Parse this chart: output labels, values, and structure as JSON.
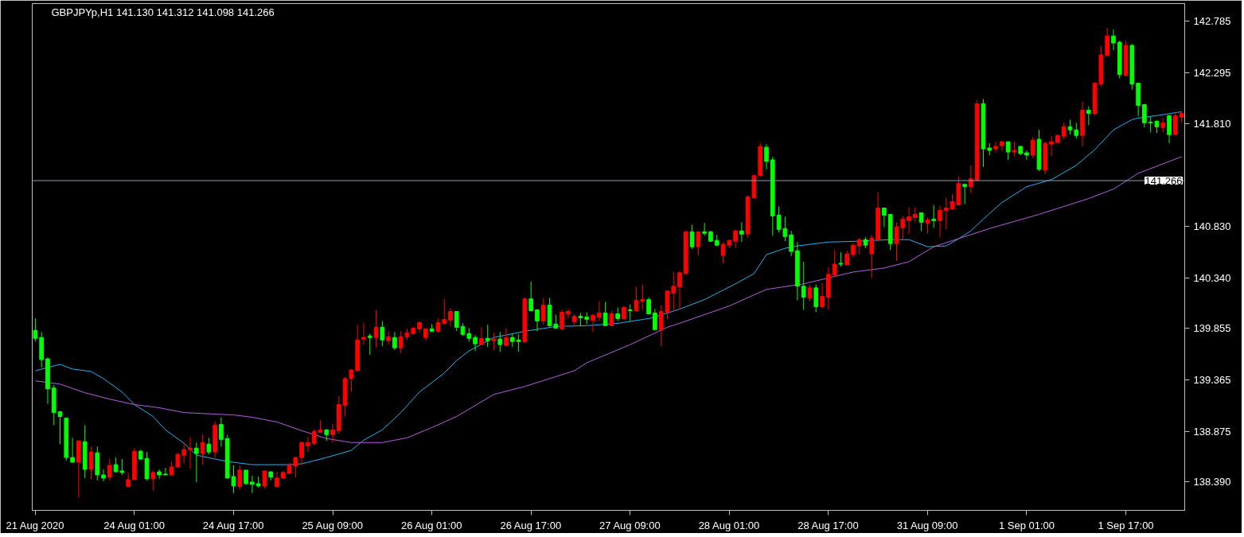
{
  "chart_data": {
    "type": "candlestick",
    "title": "GBPJPYp,H1  141.130 141.312 141.098 141.266",
    "categories": [
      "21 Aug 2020",
      null,
      null,
      null,
      null,
      null,
      null,
      null,
      null,
      null,
      null,
      null,
      null,
      null,
      null,
      null,
      "24 Aug 01:00",
      null,
      null,
      null,
      null,
      null,
      null,
      null,
      null,
      null,
      null,
      null,
      null,
      null,
      null,
      null,
      "24 Aug 17:00",
      null,
      null,
      null,
      null,
      null,
      null,
      null,
      null,
      null,
      null,
      null,
      null,
      null,
      null,
      null,
      "25 Aug 09:00",
      null,
      null,
      null,
      null,
      null,
      null,
      null,
      null,
      null,
      null,
      null,
      null,
      null,
      null,
      null,
      "26 Aug 01:00",
      null,
      null,
      null,
      null,
      null,
      null,
      null,
      null,
      null,
      null,
      null,
      null,
      null,
      null,
      null,
      "26 Aug 17:00",
      null,
      null,
      null,
      null,
      null,
      null,
      null,
      null,
      null,
      null,
      null,
      null,
      null,
      null,
      null,
      "27 Aug 09:00",
      null,
      null,
      null,
      null,
      null,
      null,
      null,
      null,
      null,
      null,
      null,
      null,
      null,
      null,
      null,
      "28 Aug 01:00",
      null,
      null,
      null,
      null,
      null,
      null,
      null,
      null,
      null,
      null,
      null,
      null,
      null,
      null,
      null,
      "28 Aug 17:00",
      null,
      null,
      null,
      null,
      null,
      null,
      null,
      null,
      null,
      null,
      null,
      null,
      null,
      null,
      null,
      "31 Aug 09:00",
      null,
      null,
      null,
      null,
      null,
      null,
      null,
      null,
      null,
      null,
      null,
      null,
      null,
      null,
      null,
      "1 Sep 01:00",
      null,
      null,
      null,
      null,
      null,
      null,
      null,
      null,
      null,
      null,
      null,
      null,
      null,
      null,
      null,
      "1 Sep 17:00",
      null,
      null,
      null,
      null,
      null,
      null,
      null,
      null,
      null
    ],
    "ohlc": [
      [
        139.837,
        139.95,
        139.731,
        139.761
      ],
      [
        139.769,
        139.821,
        139.483,
        139.558
      ],
      [
        139.565,
        139.58,
        139.136,
        139.279
      ],
      [
        139.287,
        139.317,
        138.933,
        139.053
      ],
      [
        139.061,
        139.068,
        138.752,
        139.016
      ],
      [
        139.001,
        139.001,
        138.594,
        138.624
      ],
      [
        138.624,
        138.812,
        138.579,
        138.579
      ],
      [
        138.579,
        138.79,
        138.24,
        138.782
      ],
      [
        138.775,
        138.933,
        138.428,
        138.511
      ],
      [
        138.511,
        138.729,
        138.413,
        138.677
      ],
      [
        138.669,
        138.729,
        138.406,
        138.458
      ],
      [
        138.458,
        138.511,
        138.398,
        138.428
      ],
      [
        138.436,
        138.609,
        138.406,
        138.549
      ],
      [
        138.556,
        138.624,
        138.481,
        138.488
      ],
      [
        138.496,
        138.609,
        138.458,
        138.481
      ],
      [
        138.346,
        138.481,
        138.346,
        138.413
      ],
      [
        138.413,
        138.714,
        138.413,
        138.684
      ],
      [
        138.684,
        138.699,
        138.601,
        138.609
      ],
      [
        138.616,
        138.677,
        138.406,
        138.421
      ],
      [
        138.421,
        138.504,
        138.308,
        138.481
      ],
      [
        138.488,
        138.511,
        138.421,
        138.458
      ],
      [
        138.466,
        138.526,
        138.458,
        138.458
      ],
      [
        138.458,
        138.586,
        138.451,
        138.534
      ],
      [
        138.534,
        138.669,
        138.526,
        138.654
      ],
      [
        138.646,
        138.767,
        138.571,
        138.699
      ],
      [
        138.699,
        138.82,
        138.519,
        138.714
      ],
      [
        138.714,
        138.767,
        138.39,
        138.662
      ],
      [
        138.662,
        138.842,
        138.556,
        138.767
      ],
      [
        138.752,
        138.812,
        138.654,
        138.677
      ],
      [
        138.677,
        138.97,
        138.624,
        138.933
      ],
      [
        138.94,
        139.008,
        138.729,
        138.797
      ],
      [
        138.805,
        138.842,
        138.421,
        138.428
      ],
      [
        138.443,
        138.549,
        138.285,
        138.353
      ],
      [
        138.346,
        138.549,
        138.323,
        138.504
      ],
      [
        138.504,
        138.504,
        138.36,
        138.375
      ],
      [
        138.39,
        138.451,
        138.285,
        138.368
      ],
      [
        138.375,
        138.443,
        138.338,
        138.353
      ],
      [
        138.353,
        138.496,
        138.33,
        138.496
      ],
      [
        138.488,
        138.488,
        138.406,
        138.436
      ],
      [
        138.346,
        138.488,
        138.338,
        138.428
      ],
      [
        138.428,
        138.496,
        138.421,
        138.481
      ],
      [
        138.473,
        138.571,
        138.466,
        138.549
      ],
      [
        138.541,
        138.631,
        138.436,
        138.624
      ],
      [
        138.624,
        138.775,
        138.549,
        138.767
      ],
      [
        138.737,
        138.82,
        138.677,
        138.767
      ],
      [
        138.76,
        138.895,
        138.737,
        138.873
      ],
      [
        138.865,
        138.978,
        138.865,
        138.888
      ],
      [
        138.888,
        138.895,
        138.782,
        138.842
      ],
      [
        138.842,
        138.948,
        138.767,
        138.888
      ],
      [
        138.88,
        139.212,
        138.85,
        139.129
      ],
      [
        139.121,
        139.392,
        139.016,
        139.377
      ],
      [
        139.377,
        139.468,
        139.249,
        139.46
      ],
      [
        139.453,
        139.89,
        139.445,
        139.746
      ],
      [
        139.754,
        139.912,
        139.701,
        139.769
      ],
      [
        139.784,
        139.807,
        139.603,
        139.769
      ],
      [
        139.769,
        140.033,
        139.671,
        139.867
      ],
      [
        139.867,
        139.927,
        139.686,
        139.746
      ],
      [
        139.739,
        139.829,
        139.701,
        139.777
      ],
      [
        139.769,
        139.821,
        139.649,
        139.671
      ],
      [
        139.671,
        139.829,
        139.618,
        139.777
      ],
      [
        139.777,
        139.852,
        139.746,
        139.814
      ],
      [
        139.807,
        139.867,
        139.792,
        139.859
      ],
      [
        139.852,
        139.92,
        139.814,
        139.912
      ],
      [
        139.769,
        139.852,
        139.739,
        139.852
      ],
      [
        139.852,
        139.897,
        139.821,
        139.829
      ],
      [
        139.829,
        139.95,
        139.821,
        139.912
      ],
      [
        139.905,
        140.138,
        139.89,
        139.942
      ],
      [
        139.935,
        140.048,
        139.874,
        140.018
      ],
      [
        140.018,
        140.018,
        139.829,
        139.867
      ],
      [
        139.874,
        139.905,
        139.784,
        139.799
      ],
      [
        139.807,
        139.859,
        139.731,
        139.761
      ],
      [
        139.769,
        139.792,
        139.641,
        139.709
      ],
      [
        139.701,
        139.867,
        139.701,
        139.761
      ],
      [
        139.761,
        139.89,
        139.679,
        139.739
      ],
      [
        139.739,
        139.814,
        139.649,
        139.754
      ],
      [
        139.754,
        139.821,
        139.633,
        139.701
      ],
      [
        139.694,
        139.859,
        139.679,
        139.769
      ],
      [
        139.769,
        139.807,
        139.679,
        139.731
      ],
      [
        139.746,
        139.799,
        139.633,
        139.731
      ],
      [
        139.731,
        140.153,
        139.716,
        140.138
      ],
      [
        140.138,
        140.304,
        140.018,
        140.025
      ],
      [
        140.033,
        140.04,
        139.829,
        139.927
      ],
      [
        139.927,
        140.146,
        139.89,
        140.078
      ],
      [
        140.078,
        140.146,
        139.874,
        139.882
      ],
      [
        139.897,
        139.988,
        139.859,
        139.859
      ],
      [
        139.852,
        140.033,
        139.837,
        140.01
      ],
      [
        139.995,
        140.04,
        139.95,
        140.018
      ],
      [
        139.92,
        139.995,
        139.89,
        139.972
      ],
      [
        139.972,
        140.003,
        139.882,
        139.957
      ],
      [
        139.965,
        140.01,
        139.897,
        139.942
      ],
      [
        139.935,
        139.995,
        139.821,
        139.98
      ],
      [
        139.965,
        140.115,
        139.927,
        140.003
      ],
      [
        140.003,
        140.108,
        139.882,
        139.882
      ],
      [
        139.882,
        140.025,
        139.874,
        139.995
      ],
      [
        139.995,
        140.055,
        139.927,
        139.95
      ],
      [
        139.95,
        140.07,
        139.935,
        140.055
      ],
      [
        140.033,
        140.085,
        139.927,
        140.025
      ],
      [
        140.025,
        140.251,
        140.025,
        140.123
      ],
      [
        140.115,
        140.274,
        140.033,
        140.13
      ],
      [
        140.13,
        140.153,
        139.995,
        139.995
      ],
      [
        140.003,
        140.04,
        139.844,
        139.844
      ],
      [
        139.844,
        140.078,
        139.686,
        140.018
      ],
      [
        140.01,
        140.213,
        139.942,
        140.213
      ],
      [
        140.191,
        140.394,
        140.018,
        140.258
      ],
      [
        140.251,
        140.402,
        140.033,
        140.387
      ],
      [
        140.379,
        140.786,
        140.364,
        140.778
      ],
      [
        140.778,
        140.846,
        140.613,
        140.635
      ],
      [
        140.635,
        140.778,
        140.552,
        140.778
      ],
      [
        140.778,
        140.861,
        140.74,
        140.763
      ],
      [
        140.778,
        140.786,
        140.68,
        140.688
      ],
      [
        140.695,
        140.748,
        140.643,
        140.65
      ],
      [
        140.552,
        140.68,
        140.477,
        140.658
      ],
      [
        140.65,
        140.703,
        140.62,
        140.695
      ],
      [
        140.688,
        140.801,
        140.62,
        140.786
      ],
      [
        140.786,
        140.869,
        140.68,
        140.756
      ],
      [
        140.756,
        141.125,
        140.718,
        141.11
      ],
      [
        141.102,
        141.32,
        141.102,
        141.313
      ],
      [
        141.313,
        141.622,
        141.313,
        141.592
      ],
      [
        141.584,
        141.614,
        141.374,
        141.449
      ],
      [
        141.464,
        141.494,
        140.74,
        140.929
      ],
      [
        140.936,
        141.019,
        140.771,
        140.801
      ],
      [
        140.808,
        140.921,
        140.688,
        140.733
      ],
      [
        140.748,
        140.786,
        140.545,
        140.59
      ],
      [
        140.597,
        140.68,
        140.123,
        140.258
      ],
      [
        140.258,
        140.492,
        140.033,
        140.153
      ],
      [
        140.146,
        140.274,
        140.115,
        140.243
      ],
      [
        140.243,
        140.274,
        140.01,
        140.063
      ],
      [
        140.063,
        140.289,
        140.048,
        140.161
      ],
      [
        140.153,
        140.439,
        140.033,
        140.371
      ],
      [
        140.364,
        140.605,
        140.349,
        140.469
      ],
      [
        140.477,
        140.582,
        140.447,
        140.469
      ],
      [
        140.462,
        140.597,
        140.462,
        140.567
      ],
      [
        140.56,
        140.665,
        140.53,
        140.65
      ],
      [
        140.643,
        140.718,
        140.56,
        140.703
      ],
      [
        140.703,
        140.725,
        140.62,
        140.65
      ],
      [
        140.567,
        140.748,
        140.341,
        140.718
      ],
      [
        140.703,
        141.155,
        140.68,
        141.004
      ],
      [
        141.004,
        141.004,
        140.824,
        140.936
      ],
      [
        140.944,
        140.944,
        140.605,
        140.665
      ],
      [
        140.665,
        140.869,
        140.5,
        140.824
      ],
      [
        140.816,
        140.929,
        140.703,
        140.899
      ],
      [
        140.884,
        141.012,
        140.756,
        140.921
      ],
      [
        140.914,
        141.012,
        140.869,
        140.944
      ],
      [
        140.959,
        140.959,
        140.786,
        140.869
      ],
      [
        140.861,
        140.914,
        140.763,
        140.891
      ],
      [
        140.899,
        141.034,
        140.816,
        140.884
      ],
      [
        140.884,
        141.027,
        140.725,
        140.982
      ],
      [
        140.982,
        141.102,
        140.801,
        141.004
      ],
      [
        140.997,
        141.14,
        140.989,
        141.065
      ],
      [
        141.034,
        141.306,
        141.034,
        141.238
      ],
      [
        141.23,
        141.238,
        141.042,
        141.208
      ],
      [
        141.208,
        141.411,
        141.148,
        141.283
      ],
      [
        141.268,
        142.036,
        141.268,
        141.999
      ],
      [
        141.999,
        142.044,
        141.396,
        141.569
      ],
      [
        141.577,
        141.622,
        141.509,
        141.554
      ],
      [
        141.569,
        141.637,
        141.532,
        141.592
      ],
      [
        141.599,
        141.645,
        141.547,
        141.637
      ],
      [
        141.637,
        141.637,
        141.464,
        141.539
      ],
      [
        141.539,
        141.637,
        141.501,
        141.554
      ],
      [
        141.592,
        141.599,
        141.509,
        141.524
      ],
      [
        141.532,
        141.554,
        141.464,
        141.509
      ],
      [
        141.509,
        141.682,
        141.479,
        141.652
      ],
      [
        141.66,
        141.75,
        141.358,
        141.374
      ],
      [
        141.366,
        141.637,
        141.328,
        141.622
      ],
      [
        141.614,
        141.69,
        141.501,
        141.637
      ],
      [
        141.63,
        141.705,
        141.614,
        141.697
      ],
      [
        141.69,
        141.818,
        141.66,
        141.78
      ],
      [
        141.78,
        141.848,
        141.705,
        141.75
      ],
      [
        141.75,
        141.818,
        141.667,
        141.697
      ],
      [
        141.697,
        142.021,
        141.592,
        141.938
      ],
      [
        141.938,
        141.976,
        141.795,
        141.908
      ],
      [
        141.908,
        142.202,
        141.886,
        142.195
      ],
      [
        142.187,
        142.549,
        142.164,
        142.466
      ],
      [
        142.458,
        142.722,
        142.458,
        142.646
      ],
      [
        142.646,
        142.707,
        142.511,
        142.579
      ],
      [
        142.586,
        142.601,
        142.24,
        142.277
      ],
      [
        142.27,
        142.601,
        142.262,
        142.556
      ],
      [
        142.556,
        142.571,
        142.134,
        142.187
      ],
      [
        142.195,
        142.195,
        141.878,
        141.984
      ],
      [
        141.991,
        141.999,
        141.773,
        141.818
      ],
      [
        141.825,
        141.878,
        141.727,
        141.818
      ],
      [
        141.833,
        141.84,
        141.72,
        141.78
      ],
      [
        141.773,
        141.863,
        141.727,
        141.818
      ],
      [
        141.886,
        141.893,
        141.622,
        141.705
      ],
      [
        141.705,
        141.923,
        141.705,
        141.886
      ],
      [
        141.871,
        141.923,
        141.825,
        141.908
      ]
    ],
    "colors": [
      "#00ff00",
      "#00ff00",
      "#00ff00",
      "#00ff00",
      "#00ff00",
      "#00ff00",
      "#00ff00",
      "#ff0000",
      "#00ff00",
      "#ff0000",
      "#00ff00",
      "#00ff00",
      "#ff0000",
      "#00ff00",
      "#00ff00",
      "#ff0000",
      "#ff0000",
      "#00ff00",
      "#00ff00",
      "#ff0000",
      "#00ff00",
      "#00ff00",
      "#ff0000",
      "#ff0000",
      "#ff0000",
      "#ff0000",
      "#00ff00",
      "#ff0000",
      "#00ff00",
      "#ff0000",
      "#00ff00",
      "#00ff00",
      "#00ff00",
      "#ff0000",
      "#00ff00",
      "#00ff00",
      "#00ff00",
      "#ff0000",
      "#00ff00",
      "#ff0000",
      "#ff0000",
      "#ff0000",
      "#ff0000",
      "#ff0000",
      "#ff0000",
      "#ff0000",
      "#ff0000",
      "#00ff00",
      "#ff0000",
      "#ff0000",
      "#ff0000",
      "#ff0000",
      "#ff0000",
      "#ff0000",
      "#00ff00",
      "#ff0000",
      "#00ff00",
      "#ff0000",
      "#00ff00",
      "#ff0000",
      "#ff0000",
      "#ff0000",
      "#ff0000",
      "#ff0000",
      "#00ff00",
      "#ff0000",
      "#ff0000",
      "#ff0000",
      "#00ff00",
      "#00ff00",
      "#00ff00",
      "#00ff00",
      "#ff0000",
      "#00ff00",
      "#ff0000",
      "#00ff00",
      "#ff0000",
      "#00ff00",
      "#00ff00",
      "#ff0000",
      "#00ff00",
      "#00ff00",
      "#ff0000",
      "#00ff00",
      "#00ff00",
      "#ff0000",
      "#ff0000",
      "#ff0000",
      "#00ff00",
      "#00ff00",
      "#ff0000",
      "#ff0000",
      "#00ff00",
      "#ff0000",
      "#00ff00",
      "#ff0000",
      "#00ff00",
      "#ff0000",
      "#ff0000",
      "#00ff00",
      "#00ff00",
      "#ff0000",
      "#ff0000",
      "#ff0000",
      "#ff0000",
      "#ff0000",
      "#00ff00",
      "#ff0000",
      "#00ff00",
      "#00ff00",
      "#00ff00",
      "#ff0000",
      "#ff0000",
      "#ff0000",
      "#00ff00",
      "#ff0000",
      "#ff0000",
      "#ff0000",
      "#00ff00",
      "#00ff00",
      "#00ff00",
      "#00ff00",
      "#00ff00",
      "#00ff00",
      "#00ff00",
      "#ff0000",
      "#00ff00",
      "#ff0000",
      "#ff0000",
      "#ff0000",
      "#00ff00",
      "#ff0000",
      "#ff0000",
      "#ff0000",
      "#00ff00",
      "#ff0000",
      "#ff0000",
      "#00ff00",
      "#00ff00",
      "#ff0000",
      "#ff0000",
      "#ff0000",
      "#ff0000",
      "#00ff00",
      "#ff0000",
      "#00ff00",
      "#ff0000",
      "#ff0000",
      "#ff0000",
      "#ff0000",
      "#00ff00",
      "#ff0000",
      "#ff0000",
      "#00ff00",
      "#00ff00",
      "#ff0000",
      "#ff0000",
      "#00ff00",
      "#ff0000",
      "#00ff00",
      "#00ff00",
      "#ff0000",
      "#00ff00",
      "#ff0000",
      "#ff0000",
      "#ff0000",
      "#ff0000",
      "#00ff00",
      "#00ff00",
      "#ff0000",
      "#00ff00",
      "#ff0000",
      "#ff0000",
      "#ff0000",
      "#00ff00",
      "#00ff00",
      "#ff0000",
      "#00ff00",
      "#00ff00",
      "#00ff00",
      "#00ff00",
      "#00ff00",
      "#ff0000",
      "#00ff00",
      "#ff0000",
      "#ff0000"
    ],
    "series": [
      {
        "type": "line",
        "color": "#1eb4f0",
        "values": [
          139.452,
          null,
          null,
          null,
          139.513,
          null,
          139.468,
          null,
          null,
          139.445,
          null,
          139.377,
          null,
          null,
          139.249,
          null,
          139.129,
          null,
          null,
          139.016,
          null,
          138.888,
          null,
          null,
          138.76,
          null,
          138.647,
          null,
          null,
          138.609,
          null,
          138.586,
          null,
          null,
          null,
          138.556,
          null,
          null,
          null,
          null,
          null,
          138.556,
          null,
          138.564,
          null,
          null,
          null,
          138.624,
          null,
          null,
          null,
          138.692,
          null,
          138.79,
          null,
          null,
          138.888,
          null,
          null,
          139.053,
          null,
          null,
          139.249,
          null,
          null,
          null,
          139.43,
          null,
          139.55,
          null,
          139.641,
          null,
          null,
          null,
          139.769,
          null,
          null,
          null,
          null,
          139.829,
          null,
          null,
          null,
          null,
          139.874,
          null,
          null,
          null,
          null,
          139.882,
          null,
          null,
          null,
          null,
          139.904,
          null,
          null,
          null,
          null,
          139.95,
          null,
          null,
          140.002,
          null,
          140.04,
          null,
          null,
          null,
          140.131,
          null,
          null,
          null,
          null,
          140.281,
          null,
          null,
          140.379,
          null,
          140.56,
          null,
          null,
          140.62,
          null,
          140.643,
          null,
          null,
          null,
          null,
          140.68,
          null,
          null,
          null,
          null,
          140.688,
          null,
          null,
          null,
          null,
          140.703,
          null,
          null,
          140.703,
          null,
          null,
          140.635,
          null,
          null,
          140.643,
          null,
          140.711,
          null,
          140.786,
          null,
          140.899,
          null,
          null,
          141.057,
          null,
          null,
          null,
          141.208,
          null,
          null,
          null,
          141.276,
          null,
          null,
          null,
          141.411,
          null,
          null,
          141.562,
          null,
          null,
          141.75,
          null,
          null,
          141.848,
          141.863,
          null,
          null,
          141.886,
          null,
          null,
          null,
          141.923
        ]
      },
      {
        "type": "line",
        "color": "#b45fdc",
        "values": [
          139.355,
          null,
          null,
          null,
          139.325,
          null,
          null,
          null,
          139.242,
          null,
          null,
          null,
          139.181,
          null,
          null,
          null,
          139.129,
          null,
          null,
          null,
          139.099,
          null,
          null,
          null,
          139.053,
          null,
          null,
          null,
          null,
          139.038,
          null,
          null,
          139.031,
          null,
          null,
          139.008,
          null,
          null,
          null,
          138.963,
          null,
          null,
          null,
          138.88,
          null,
          null,
          null,
          138.805,
          null,
          null,
          null,
          138.767,
          null,
          null,
          null,
          null,
          138.767,
          null,
          null,
          null,
          138.812,
          null,
          null,
          null,
          138.91,
          null,
          null,
          null,
          139.016,
          null,
          null,
          null,
          null,
          null,
          139.226,
          null,
          null,
          null,
          null,
          139.302,
          null,
          null,
          null,
          null,
          null,
          null,
          null,
          139.452,
          null,
          139.528,
          null,
          null,
          null,
          null,
          null,
          null,
          139.701,
          null,
          null,
          null,
          null,
          null,
          139.867,
          null,
          139.905,
          null,
          null,
          null,
          null,
          null,
          null,
          null,
          140.07,
          null,
          null,
          null,
          null,
          null,
          140.228,
          null,
          null,
          null,
          null,
          null,
          140.281,
          null,
          null,
          null,
          null,
          null,
          null,
          null,
          140.394,
          null,
          null,
          null,
          null,
          140.432,
          null,
          null,
          null,
          140.492,
          null,
          null,
          null,
          140.635,
          null,
          null,
          null,
          null,
          null,
          null,
          null,
          null,
          140.809,
          null,
          null,
          null,
          null,
          null,
          null,
          null,
          140.944,
          null,
          null,
          null,
          null,
          null,
          null,
          null,
          141.095,
          null,
          null,
          null,
          141.185,
          null,
          null,
          null,
          141.336,
          null,
          null,
          null,
          null,
          null,
          null,
          141.494
        ]
      }
    ],
    "ylim": [
      138.12,
      142.955
    ],
    "yticks": [
      142.785,
      142.295,
      {
        "value": 141.81,
        "label": "141.810"
      },
      {
        "value": 140.83,
        "label": "140.830"
      },
      {
        "value": 140.34,
        "label": "140.340"
      },
      139.855,
      139.365,
      138.875,
      {
        "value": 138.39,
        "label": "138.390"
      }
    ],
    "ref_lines": [
      {
        "axis": "y",
        "value": 141.266,
        "label": "141.266",
        "color": "#8ca0b4"
      }
    ]
  }
}
